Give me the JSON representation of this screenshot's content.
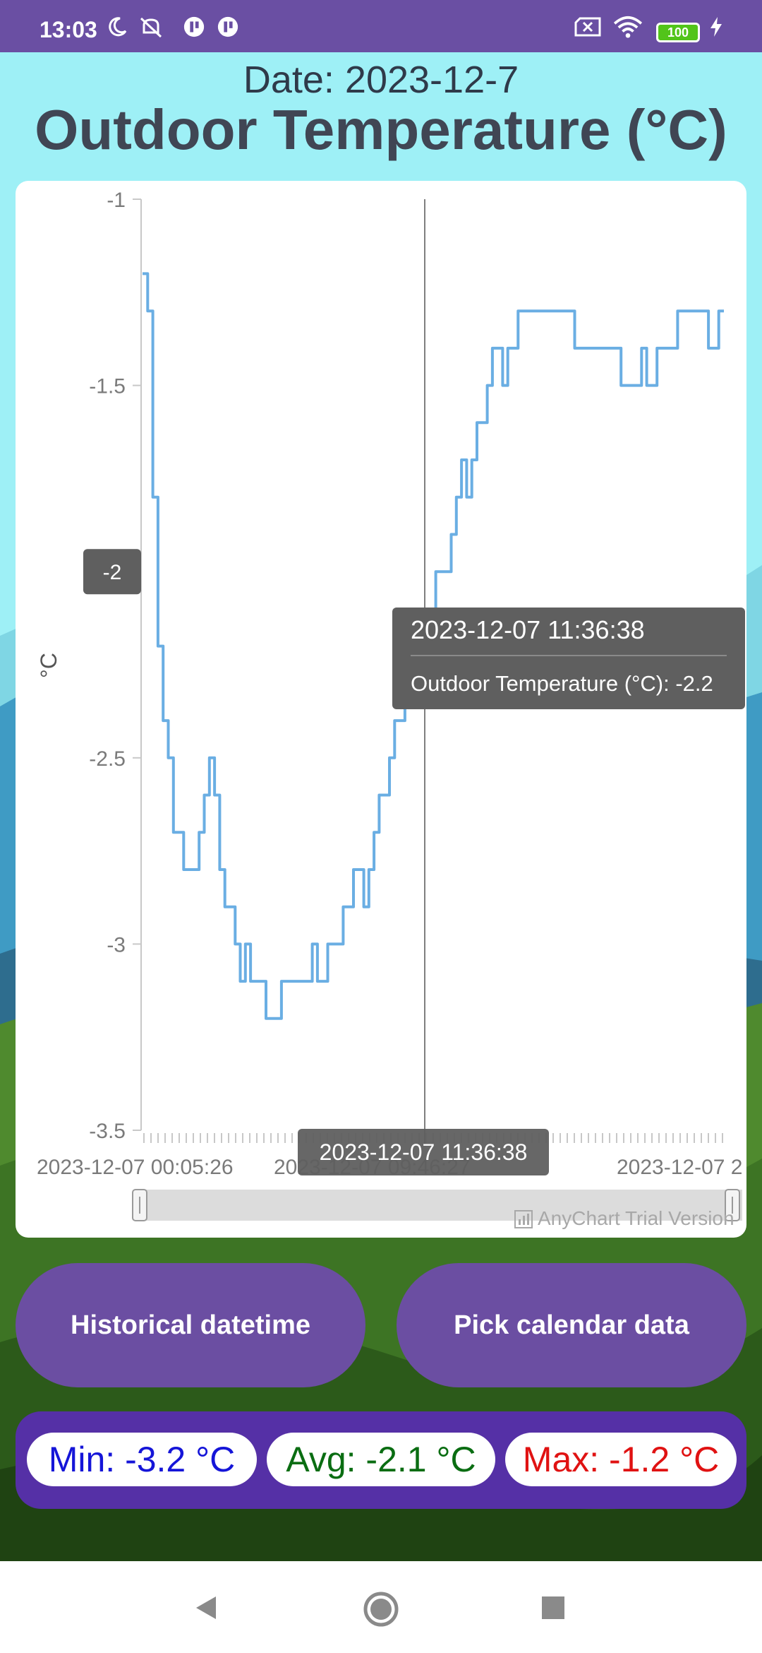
{
  "status_bar": {
    "time": "13:03",
    "battery": "100",
    "icons": [
      "moon-icon",
      "mute-icon",
      "app-notification-icon",
      "app-notification-icon",
      "sim-x-icon",
      "wifi-icon",
      "battery-icon",
      "charging-icon"
    ]
  },
  "header": {
    "date": "Date: 2023-12-7",
    "title": "Outdoor Temperature (°C)"
  },
  "chart_data": {
    "type": "line",
    "title": "",
    "ylabel": "°C",
    "xlabel": "",
    "ylim": [
      -3.5,
      -1
    ],
    "y_ticks": [
      "-1",
      "-1.5",
      "-2",
      "-2.5",
      "-3",
      "-3.5"
    ],
    "x_tick_labels": [
      "2023-12-07 00:05:26",
      "2023-12-07 09:46:27",
      "2023-12-07 2"
    ],
    "series": [
      {
        "color": "#6aaee3",
        "values": [
          -1.2,
          -1.3,
          -1.8,
          -2.2,
          -2.4,
          -2.5,
          -2.7,
          -2.7,
          -2.8,
          -2.8,
          -2.8,
          -2.7,
          -2.6,
          -2.5,
          -2.6,
          -2.8,
          -2.9,
          -2.9,
          -3.0,
          -3.1,
          -3.0,
          -3.1,
          -3.1,
          -3.1,
          -3.2,
          -3.2,
          -3.2,
          -3.1,
          -3.1,
          -3.1,
          -3.1,
          -3.1,
          -3.1,
          -3.0,
          -3.1,
          -3.1,
          -3.0,
          -3.0,
          -3.0,
          -2.9,
          -2.9,
          -2.8,
          -2.8,
          -2.9,
          -2.8,
          -2.7,
          -2.6,
          -2.6,
          -2.5,
          -2.4,
          -2.4,
          -2.3,
          -2.3,
          -2.2,
          -2.2,
          -2.2,
          -2.2,
          -2.0,
          -2.0,
          -2.0,
          -1.9,
          -1.8,
          -1.7,
          -1.8,
          -1.7,
          -1.6,
          -1.6,
          -1.5,
          -1.4,
          -1.4,
          -1.5,
          -1.4,
          -1.4,
          -1.3,
          -1.3,
          -1.3,
          -1.3,
          -1.3,
          -1.3,
          -1.3,
          -1.3,
          -1.3,
          -1.3,
          -1.3,
          -1.4,
          -1.4,
          -1.4,
          -1.4,
          -1.4,
          -1.4,
          -1.4,
          -1.4,
          -1.4,
          -1.5,
          -1.5,
          -1.5,
          -1.5,
          -1.4,
          -1.5,
          -1.5,
          -1.4,
          -1.4,
          -1.4,
          -1.4,
          -1.3,
          -1.3,
          -1.3,
          -1.3,
          -1.3,
          -1.3,
          -1.4,
          -1.4,
          -1.3,
          -1.3
        ]
      }
    ],
    "cursor_y_label": "-2",
    "cursor_x_label": "2023-12-07 11:36:38",
    "tooltip": {
      "title": "2023-12-07 11:36:38",
      "text": "Outdoor Temperature (°C): -2.2"
    },
    "watermark": "AnyChart Trial Version",
    "grid": false
  },
  "buttons": {
    "historical": "Historical datetime",
    "calendar": "Pick calendar data"
  },
  "stats": {
    "min": "Min: -3.2 °C",
    "avg": "Avg: -2.1 °C",
    "max": "Max: -1.2 °C"
  },
  "nav": {
    "icons": [
      "back-icon",
      "home-icon",
      "recents-icon"
    ]
  }
}
